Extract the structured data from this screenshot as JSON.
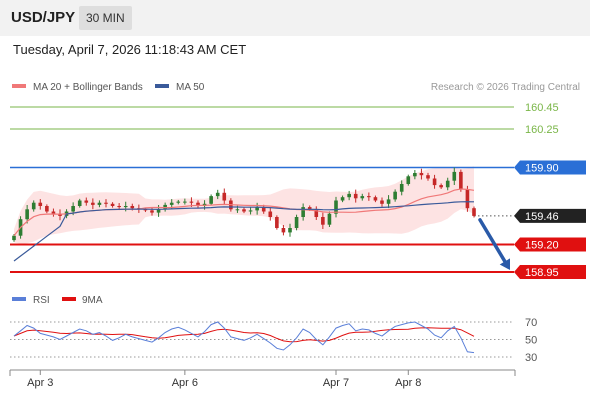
{
  "header": {
    "pair": "USD/JPY",
    "timeframe": "30 MIN"
  },
  "datetime": "Tuesday, April 7, 2026 11:18:43 AM CET",
  "legend": {
    "ma20_label": "MA 20 + Bollinger Bands",
    "ma50_label": "MA 50",
    "credit": "Research © 2026 Trading Central"
  },
  "colors": {
    "ma20": "#f07878",
    "ma50": "#3a5a9a",
    "bands_fill": "#fde3e3",
    "resistance": "#7ab648",
    "pivot": "#2a6fd6",
    "support": "#e01010",
    "current": "#222222",
    "arrow": "#2a5aa8",
    "rsi": "#5a7fd8",
    "rsi_ma": "#e01010",
    "up": "#2e7d32",
    "down": "#c62828"
  },
  "levels": [
    {
      "id": "r2",
      "label": "160.45",
      "value": 160.45,
      "kind": "resistance"
    },
    {
      "id": "r1",
      "label": "160.25",
      "value": 160.25,
      "kind": "resistance"
    },
    {
      "id": "pivot",
      "label": "159.90",
      "value": 159.9,
      "kind": "pivot"
    },
    {
      "id": "last",
      "label": "159.46",
      "value": 159.46,
      "kind": "current"
    },
    {
      "id": "s1",
      "label": "159.20",
      "value": 159.2,
      "kind": "support"
    },
    {
      "id": "s2",
      "label": "158.95",
      "value": 158.95,
      "kind": "support"
    }
  ],
  "price_axis": {
    "min": 158.9,
    "max": 160.5
  },
  "close_path": [
    159.28,
    159.43,
    159.52,
    159.58,
    159.55,
    159.5,
    159.48,
    159.46,
    159.5,
    159.55,
    159.6,
    159.58,
    159.56,
    159.58,
    159.57,
    159.55,
    159.54,
    159.55,
    159.53,
    159.52,
    159.51,
    159.49,
    159.52,
    159.56,
    159.58,
    159.59,
    159.59,
    159.58,
    159.55,
    159.57,
    159.64,
    159.67,
    159.6,
    159.52,
    159.52,
    159.5,
    159.51,
    159.54,
    159.5,
    159.45,
    159.35,
    159.31,
    159.35,
    159.45,
    159.54,
    159.52,
    159.45,
    159.38,
    159.48,
    159.6,
    159.63,
    159.66,
    159.62,
    159.64,
    159.63,
    159.6,
    159.57,
    159.61,
    159.68,
    159.75,
    159.82,
    159.85,
    159.83,
    159.8,
    159.74,
    159.72,
    159.78,
    159.86,
    159.7,
    159.53,
    159.46
  ],
  "rsi": {
    "label": "RSI",
    "ma_label": "9MA",
    "levels": [
      {
        "id": "rsi70",
        "label": "70",
        "value": 70
      },
      {
        "id": "rsi50",
        "label": "50",
        "value": 50
      },
      {
        "id": "rsi30",
        "label": "30",
        "value": 30
      }
    ],
    "values": [
      54,
      60,
      66,
      63,
      57,
      55,
      53,
      50,
      54,
      58,
      62,
      60,
      56,
      58,
      54,
      49,
      52,
      56,
      53,
      51,
      49,
      47,
      52,
      58,
      62,
      64,
      61,
      57,
      53,
      59,
      67,
      70,
      63,
      53,
      51,
      49,
      52,
      56,
      51,
      46,
      40,
      38,
      44,
      52,
      62,
      58,
      50,
      44,
      53,
      63,
      66,
      68,
      60,
      62,
      61,
      57,
      54,
      60,
      65,
      67,
      69,
      70,
      66,
      62,
      55,
      52,
      60,
      65,
      52,
      36,
      35
    ]
  },
  "x_axis": {
    "labels": [
      {
        "label": "Apr 3",
        "index": 4
      },
      {
        "label": "Apr 6",
        "index": 26
      },
      {
        "label": "Apr 7",
        "index": 49
      },
      {
        "label": "Apr 8",
        "index": 60
      }
    ]
  }
}
